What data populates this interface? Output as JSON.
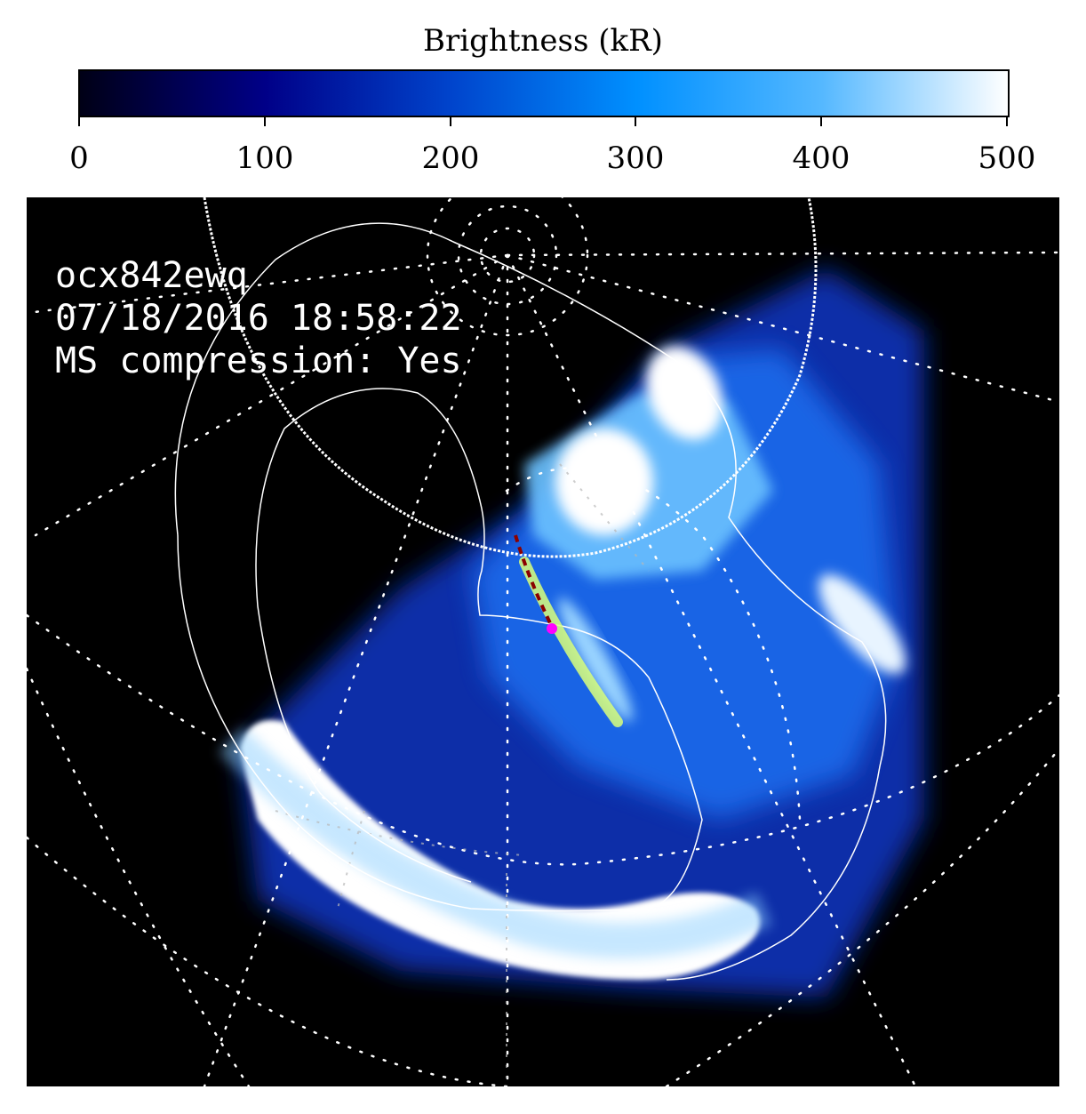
{
  "colorbar": {
    "title": "Brightness (kR)",
    "ticks": [
      "0",
      "100",
      "200",
      "300",
      "400",
      "500"
    ],
    "gradient": [
      "#000016",
      "#000088",
      "#0044cc",
      "#0090ff",
      "#55b8ff",
      "#ffffff"
    ]
  },
  "overlay": {
    "image_id": "ocx842ewq",
    "timestamp": "07/18/2016 18:58:22",
    "ms_compression": "MS compression: Yes"
  },
  "colors": {
    "background": "#000000",
    "aurora_core": "#ffffff",
    "aurora_mid": "#1a6ef0",
    "aurora_dim": "#0b2fa8",
    "footprint_track": "#d9ff7a",
    "footprint_dashes": "#8b0000",
    "footprint_point": "#ff00ff",
    "grid": "#ffffff"
  }
}
